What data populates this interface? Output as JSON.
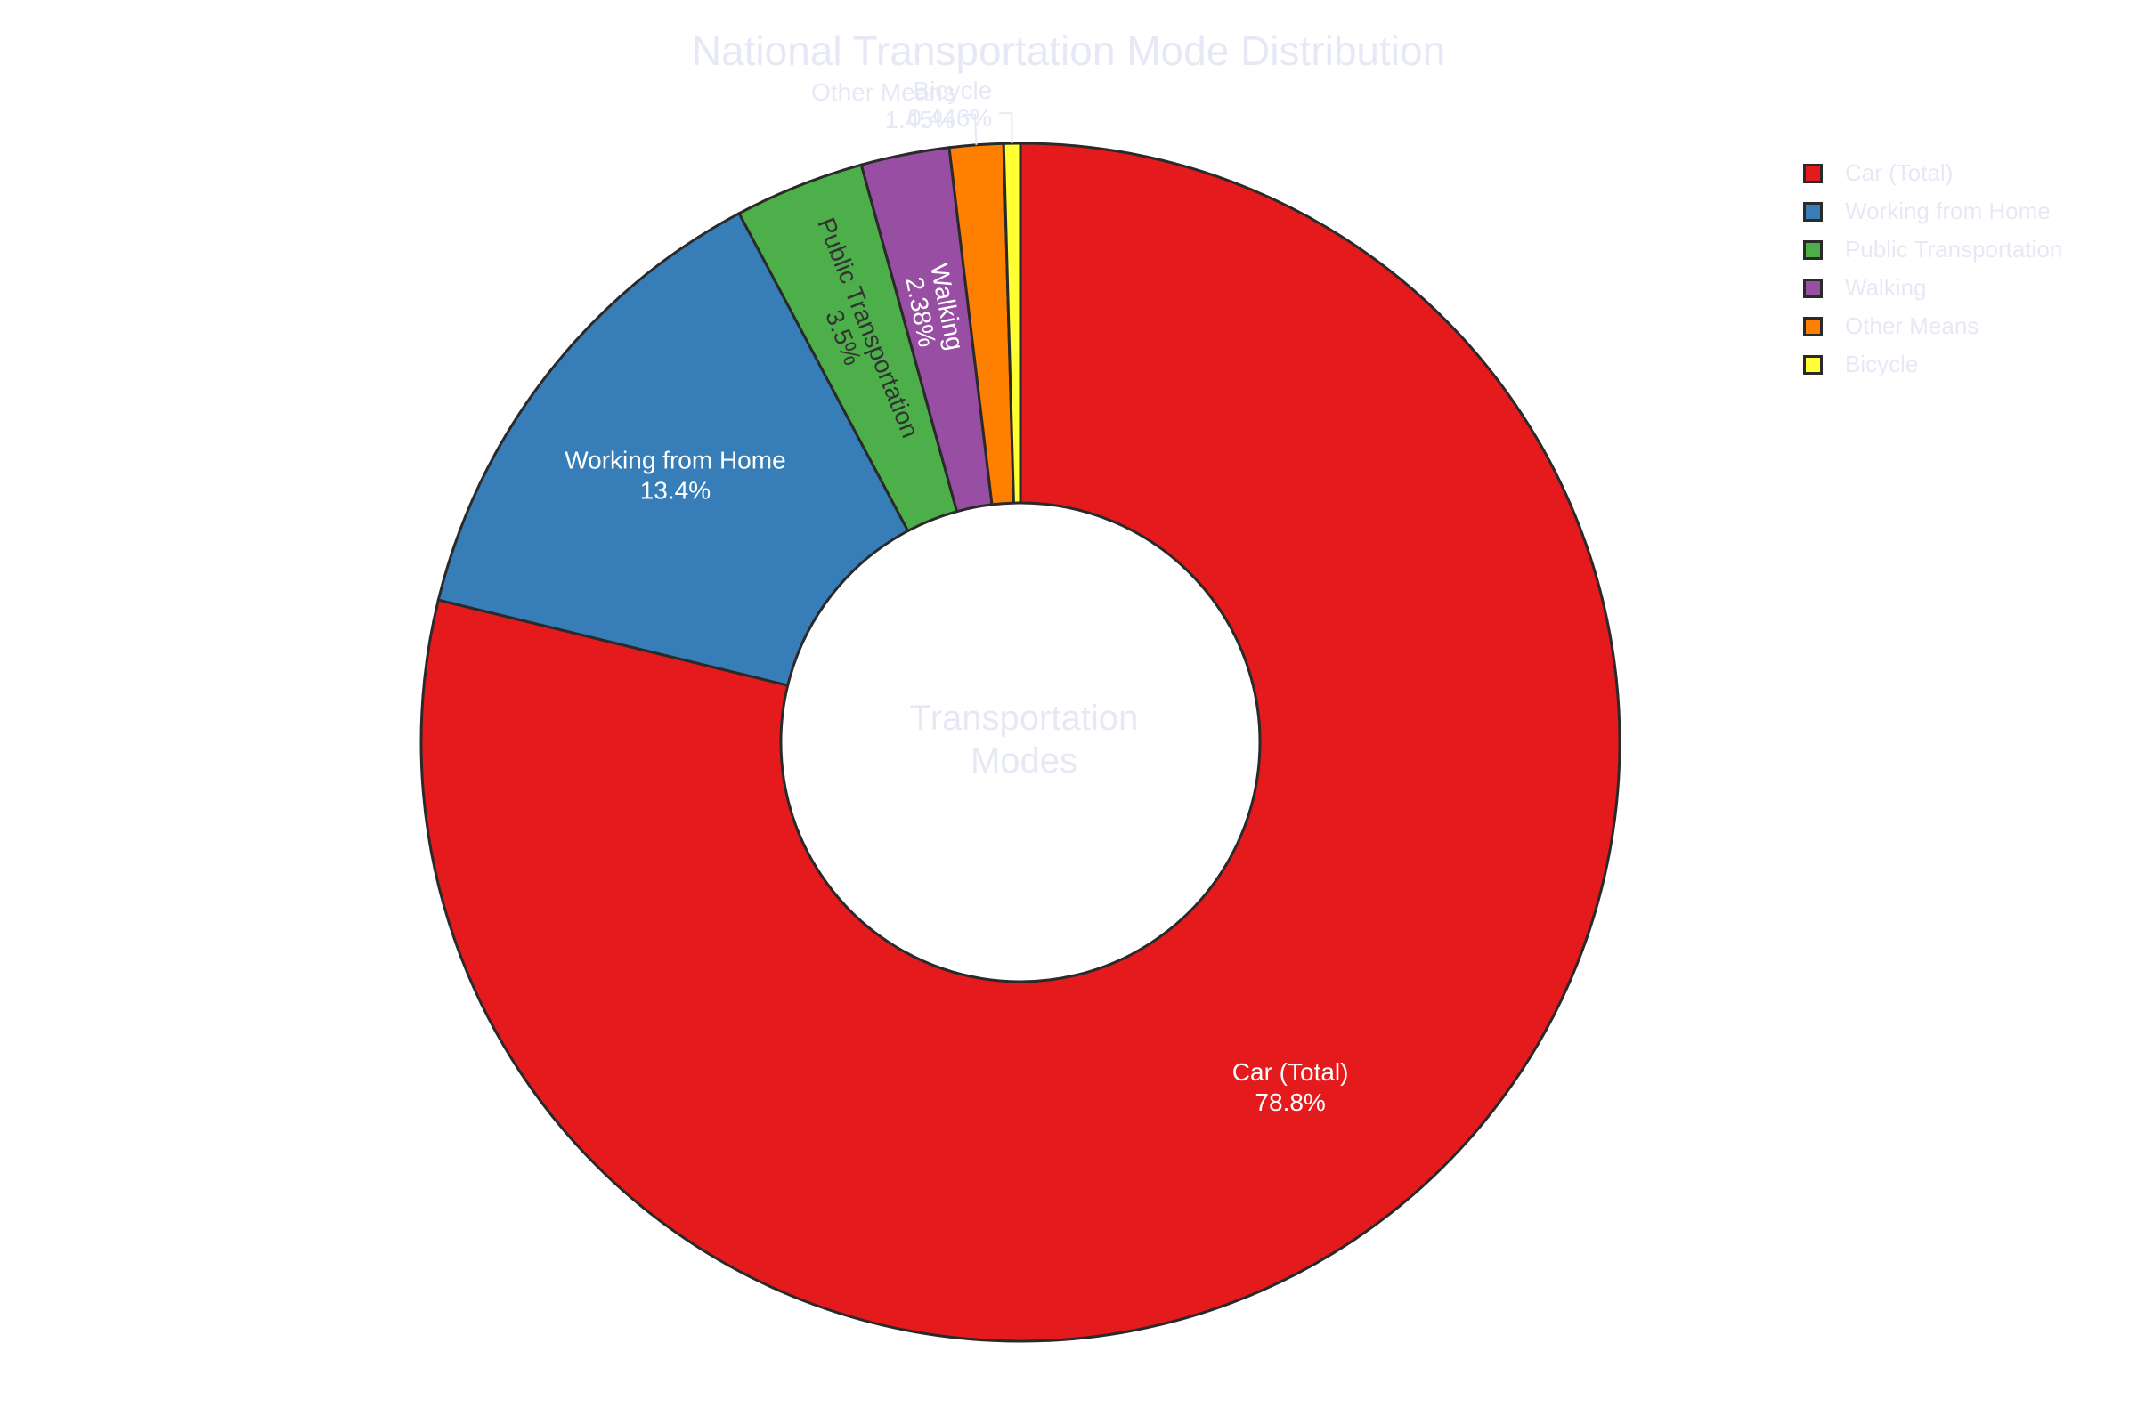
{
  "chart_data": {
    "type": "pie",
    "title": "National Transportation Mode Distribution",
    "hole_label": [
      "Transportation",
      "Modes"
    ],
    "slices": [
      {
        "label": "Car (Total)",
        "value": 78.8,
        "text": "78.8%",
        "color": "#e41a1c",
        "text_color": "#ffffff"
      },
      {
        "label": "Working from Home",
        "value": 13.4,
        "text": "13.4%",
        "color": "#377eb8",
        "text_color": "#ffffff"
      },
      {
        "label": "Public Transportation",
        "value": 3.5,
        "text": "3.5%",
        "color": "#4daf4a",
        "text_color": "#333333"
      },
      {
        "label": "Walking",
        "value": 2.38,
        "text": "2.38%",
        "color": "#984ea3",
        "text_color": "#ffffff"
      },
      {
        "label": "Other Means",
        "value": 1.45,
        "text": "1.45%",
        "color": "#ff7f00",
        "text_color": "#e6e9f5"
      },
      {
        "label": "Bicycle",
        "value": 0.446,
        "text": "0.446%",
        "color": "#ffff33",
        "text_color": "#e6e9f5"
      }
    ],
    "legend_position": "top-right",
    "hole": true
  }
}
